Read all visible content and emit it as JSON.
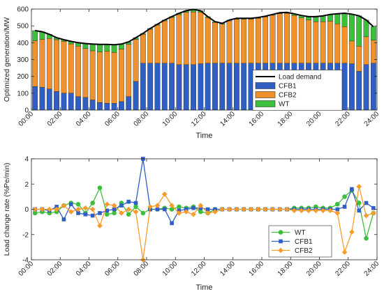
{
  "chart_data": [
    {
      "type": "bar",
      "stacked": true,
      "ylabel": "Optimized generation/MW",
      "xlabel": "Time",
      "xlim": [
        0,
        24
      ],
      "ylim": [
        0,
        600
      ],
      "yticks": [
        0,
        100,
        200,
        300,
        400,
        500,
        600
      ],
      "xticks": [
        {
          "value": 0,
          "label": "00:00"
        },
        {
          "value": 2,
          "label": "02:00"
        },
        {
          "value": 4,
          "label": "04:00"
        },
        {
          "value": 6,
          "label": "06:00"
        },
        {
          "value": 8,
          "label": "08:00"
        },
        {
          "value": 10,
          "label": "10:00"
        },
        {
          "value": 12,
          "label": "12:00"
        },
        {
          "value": 14,
          "label": "14:00"
        },
        {
          "value": 16,
          "label": "16:00"
        },
        {
          "value": 18,
          "label": "18:00"
        },
        {
          "value": 20,
          "label": "20:00"
        },
        {
          "value": 22,
          "label": "22:00"
        },
        {
          "value": 24,
          "label": "24:00"
        }
      ],
      "legend": "center right",
      "grid": false,
      "x": [
        0.25,
        0.75,
        1.25,
        1.75,
        2.25,
        2.75,
        3.25,
        3.75,
        4.25,
        4.75,
        5.25,
        5.75,
        6.25,
        6.75,
        7.25,
        7.75,
        8.25,
        8.75,
        9.25,
        9.75,
        10.25,
        10.75,
        11.25,
        11.75,
        12.25,
        12.75,
        13.25,
        13.75,
        14.25,
        14.75,
        15.25,
        15.75,
        16.25,
        16.75,
        17.25,
        17.75,
        18.25,
        18.75,
        19.25,
        19.75,
        20.25,
        20.75,
        21.25,
        21.75,
        22.25,
        22.75,
        23.25,
        23.75
      ],
      "series": [
        {
          "name": "Load demand",
          "type": "line",
          "color": "#000000",
          "values": [
            472,
            465,
            450,
            430,
            418,
            408,
            400,
            395,
            392,
            390,
            390,
            388,
            392,
            405,
            430,
            455,
            485,
            510,
            535,
            555,
            575,
            590,
            598,
            590,
            555,
            525,
            515,
            535,
            545,
            545,
            545,
            550,
            558,
            568,
            578,
            580,
            572,
            562,
            555,
            555,
            560,
            568,
            572,
            575,
            570,
            560,
            535,
            495
          ]
        },
        {
          "name": "CFB1",
          "type": "bar",
          "color": "#2f5fc4",
          "values": [
            140,
            135,
            125,
            110,
            100,
            100,
            80,
            75,
            60,
            45,
            40,
            40,
            50,
            80,
            170,
            278,
            278,
            278,
            278,
            278,
            270,
            270,
            270,
            275,
            278,
            278,
            278,
            278,
            278,
            278,
            278,
            278,
            278,
            278,
            278,
            278,
            278,
            278,
            278,
            278,
            278,
            278,
            278,
            278,
            275,
            230,
            270,
            278
          ]
        },
        {
          "name": "CFB2",
          "type": "bar",
          "color": "#f0922c",
          "values": [
            272,
            285,
            300,
            308,
            308,
            293,
            300,
            290,
            292,
            300,
            310,
            303,
            312,
            310,
            250,
            172,
            202,
            227,
            252,
            272,
            297,
            310,
            313,
            305,
            272,
            242,
            232,
            252,
            262,
            262,
            262,
            267,
            275,
            285,
            295,
            297,
            284,
            269,
            257,
            247,
            247,
            250,
            234,
            217,
            135,
            150,
            165,
            137
          ]
        },
        {
          "name": "WT",
          "type": "bar",
          "color": "#3cbf3c",
          "values": [
            60,
            45,
            25,
            12,
            10,
            15,
            20,
            30,
            40,
            45,
            40,
            45,
            30,
            15,
            10,
            5,
            5,
            5,
            5,
            5,
            8,
            10,
            15,
            10,
            5,
            5,
            5,
            5,
            5,
            5,
            5,
            5,
            5,
            5,
            5,
            5,
            10,
            15,
            20,
            30,
            35,
            40,
            60,
            80,
            160,
            180,
            100,
            80
          ]
        }
      ]
    },
    {
      "type": "line",
      "ylabel": "Load change rate (%Pe/min)",
      "xlabel": "Time",
      "xlim": [
        0,
        24
      ],
      "ylim": [
        -4,
        4
      ],
      "yticks": [
        -4,
        -2,
        0,
        2,
        4
      ],
      "xticks": [
        {
          "value": 0,
          "label": "00:00"
        },
        {
          "value": 2,
          "label": "02:00"
        },
        {
          "value": 4,
          "label": "04:00"
        },
        {
          "value": 6,
          "label": "06:00"
        },
        {
          "value": 8,
          "label": "08:00"
        },
        {
          "value": 10,
          "label": "10:00"
        },
        {
          "value": 12,
          "label": "12:00"
        },
        {
          "value": 14,
          "label": "14:00"
        },
        {
          "value": 16,
          "label": "16:00"
        },
        {
          "value": 18,
          "label": "18:00"
        },
        {
          "value": 20,
          "label": "20:00"
        },
        {
          "value": 22,
          "label": "22:00"
        },
        {
          "value": 24,
          "label": "24:00"
        }
      ],
      "legend": "lower right",
      "grid": false,
      "x": [
        0.25,
        0.75,
        1.25,
        1.75,
        2.25,
        2.75,
        3.25,
        3.75,
        4.25,
        4.75,
        5.25,
        5.75,
        6.25,
        6.75,
        7.25,
        7.75,
        8.25,
        8.75,
        9.25,
        9.75,
        10.25,
        10.75,
        11.25,
        11.75,
        12.25,
        12.75,
        13.25,
        13.75,
        14.25,
        14.75,
        15.25,
        15.75,
        16.25,
        16.75,
        17.25,
        17.75,
        18.25,
        18.75,
        19.25,
        19.75,
        20.25,
        20.75,
        21.25,
        21.75,
        22.25,
        22.75,
        23.25,
        23.75
      ],
      "series": [
        {
          "name": "WT",
          "marker": "circle",
          "color": "#3cbf3c",
          "values": [
            -0.3,
            -0.2,
            -0.3,
            -0.2,
            0.3,
            0.5,
            0.4,
            -0.3,
            0.5,
            1.7,
            -0.4,
            -0.3,
            0.5,
            -0.4,
            0.2,
            -0.3,
            0,
            0,
            0.1,
            0,
            0.2,
            0.1,
            0.2,
            -0.2,
            -0.3,
            0,
            0,
            0,
            0,
            0,
            0,
            0,
            0,
            0,
            0,
            0,
            0.1,
            0.1,
            0.1,
            0.2,
            0.1,
            0.1,
            0.4,
            1.0,
            1.5,
            0.5,
            -2.3,
            -0.3
          ]
        },
        {
          "name": "CFB1",
          "marker": "square",
          "color": "#2f5fc4",
          "values": [
            0,
            0,
            -0.1,
            0.2,
            -0.8,
            0.4,
            -0.3,
            -0.4,
            -0.5,
            -0.3,
            -0.1,
            0,
            0.3,
            0.6,
            0.5,
            4.0,
            0,
            0,
            0,
            -1.1,
            -0.1,
            0,
            0.1,
            0.1,
            0,
            0,
            0,
            0,
            0,
            0,
            0,
            0,
            0,
            0,
            0,
            0,
            0,
            0,
            0,
            0,
            0,
            0,
            0,
            0.2,
            1.6,
            -0.1,
            0.5,
            0.1
          ]
        },
        {
          "name": "CFB2",
          "marker": "diamond",
          "color": "#f99b2c",
          "values": [
            0,
            0,
            0,
            0,
            0.3,
            -0.2,
            0,
            0.1,
            0,
            -1.3,
            0.4,
            0.3,
            -0.3,
            0,
            -0.2,
            -4.0,
            0.2,
            0.3,
            1.2,
            0.3,
            -0.3,
            -0.2,
            -0.4,
            0.3,
            -0.3,
            -0.2,
            0,
            0,
            0,
            0,
            0,
            0,
            0,
            0,
            0,
            0,
            -0.1,
            -0.1,
            -0.1,
            -0.1,
            -0.1,
            -0.1,
            -0.3,
            -3.4,
            -1.8,
            1.8,
            -0.5,
            -0.3
          ]
        }
      ]
    }
  ]
}
